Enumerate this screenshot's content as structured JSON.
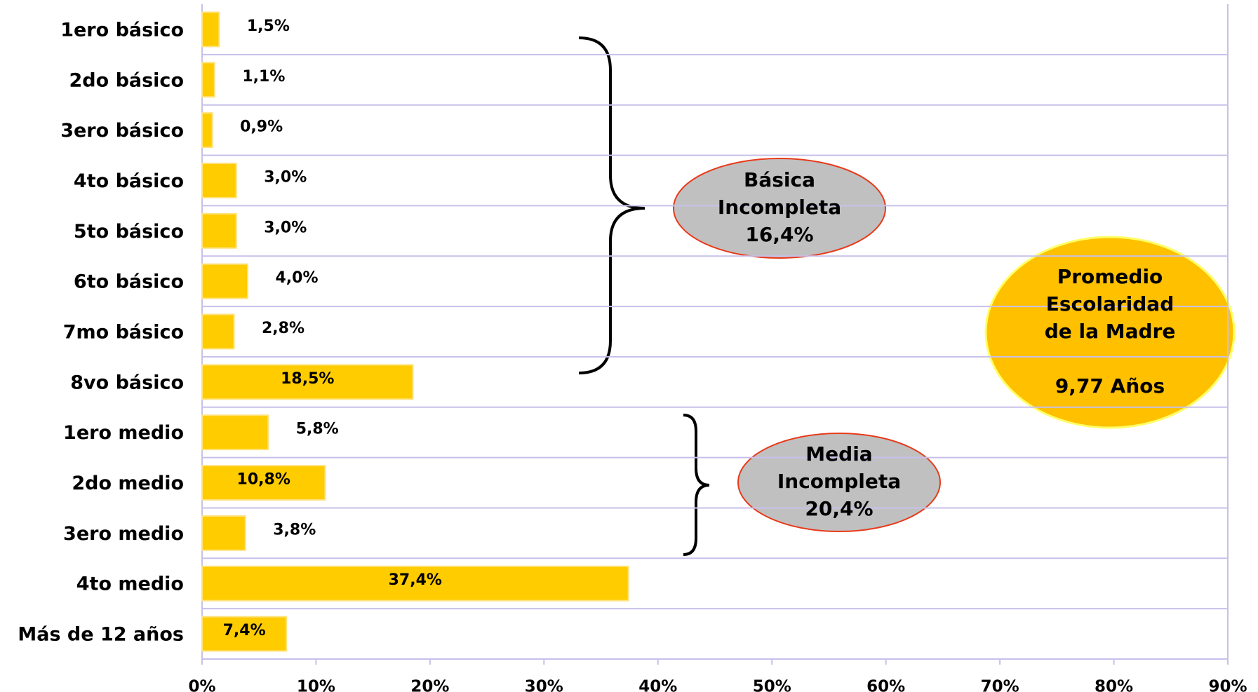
{
  "chart_data": {
    "type": "hbar",
    "categories": [
      "1ero básico",
      "2do básico",
      "3ero básico",
      "4to básico",
      "5to básico",
      "6to básico",
      "7mo básico",
      "8vo básico",
      "1ero medio",
      "2do medio",
      "3ero medio",
      "4to medio",
      "Más de 12 años"
    ],
    "values": [
      1.5,
      1.1,
      0.9,
      3.0,
      3.0,
      4.0,
      2.8,
      18.5,
      5.8,
      10.8,
      3.8,
      37.4,
      7.4
    ],
    "value_labels": [
      "1,5%",
      "1,1%",
      "0,9%",
      "3,0%",
      "3,0%",
      "4,0%",
      "2,8%",
      "18,5%",
      "5,8%",
      "10,8%",
      "3,8%",
      "37,4%",
      "7,4%"
    ],
    "color": "#ffcc00",
    "xlim": [
      0,
      90
    ],
    "xticks": [
      {
        "value": 0,
        "label": "0%"
      },
      {
        "value": 10,
        "label": "10%"
      },
      {
        "value": 20,
        "label": "20%"
      },
      {
        "value": 30,
        "label": "30%"
      },
      {
        "value": 40,
        "label": "40%"
      },
      {
        "value": 50,
        "label": "50%"
      },
      {
        "value": 60,
        "label": "60%"
      },
      {
        "value": 70,
        "label": "70%"
      },
      {
        "value": 80,
        "label": "80%"
      },
      {
        "value": 90,
        "label": "90%"
      }
    ],
    "grid": true,
    "annotations": [
      {
        "lines": [
          "Básica",
          "Incompleta",
          "16,4%"
        ]
      },
      {
        "lines": [
          "Media",
          "Incompleta",
          "20,4%"
        ]
      },
      {
        "lines": [
          "Promedio",
          "Escolaridad",
          "de la Madre",
          "9,77 Años"
        ]
      }
    ]
  }
}
